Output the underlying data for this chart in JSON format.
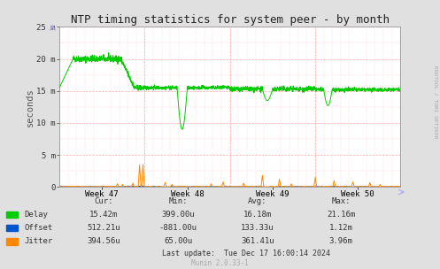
{
  "title": "NTP timing statistics for system peer - by month",
  "ylabel": "seconds",
  "bg_color": "#e0e0e0",
  "plot_bg_color": "#ffffff",
  "grid_color": "#ffaaaa",
  "x_tick_labels": [
    "Week 47",
    "Week 48",
    "Week 49",
    "Week 50"
  ],
  "ylim": [
    0,
    25
  ],
  "yticks": [
    0,
    5,
    10,
    15,
    20,
    25
  ],
  "ytick_labels": [
    "0",
    "5 m",
    "10 m",
    "15 m",
    "20 m",
    "25 m"
  ],
  "delay_color": "#00cc00",
  "offset_color": "#0055cc",
  "jitter_color": "#ff8800",
  "legend_items": [
    {
      "label": "Delay",
      "color": "#00cc00"
    },
    {
      "label": "Offset",
      "color": "#0055cc"
    },
    {
      "label": "Jitter",
      "color": "#ff8800"
    }
  ],
  "stats_header": [
    "Cur:",
    "Min:",
    "Avg:",
    "Max:"
  ],
  "stats_delay": [
    "15.42m",
    "399.00u",
    "16.18m",
    "21.16m"
  ],
  "stats_offset": [
    "512.21u",
    "-881.00u",
    "133.33u",
    "1.12m"
  ],
  "stats_jitter": [
    "394.56u",
    "65.00u",
    "361.41u",
    "3.96m"
  ],
  "last_update": "Last update:  Tue Dec 17 16:00:14 2024",
  "munin_version": "Munin 2.0.33-1",
  "rrdtool_label": "RRDTOOL / TOBI OETIKER"
}
